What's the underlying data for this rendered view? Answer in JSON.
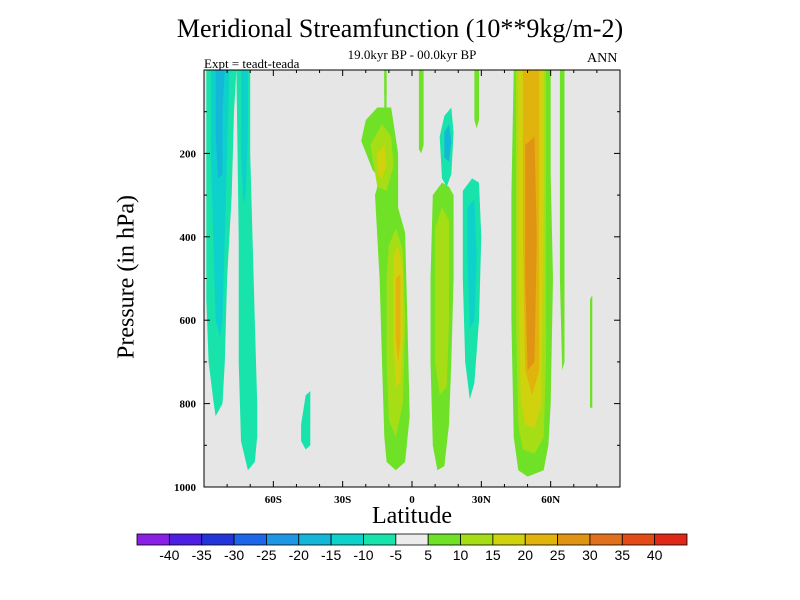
{
  "chart_data": {
    "type": "heatmap",
    "title": "Meridional Streamfunction (10**9kg/m-2)",
    "subtitle": "19.0kyr BP - 00.0kyr BP",
    "experiment": "Expt = teadt-teada",
    "season": "ANN",
    "xlabel": "Latitude",
    "ylabel": "Pressure (in hPa)",
    "xlim": [
      -90,
      90
    ],
    "ylim": [
      1000,
      0
    ],
    "x_ticks": [
      {
        "value": -60,
        "label": "60S"
      },
      {
        "value": -30,
        "label": "30S"
      },
      {
        "value": 0,
        "label": "0"
      },
      {
        "value": 30,
        "label": "30N"
      },
      {
        "value": 60,
        "label": "60N"
      }
    ],
    "y_ticks": [
      {
        "value": 200,
        "label": "200"
      },
      {
        "value": 400,
        "label": "400"
      },
      {
        "value": 600,
        "label": "600"
      },
      {
        "value": 800,
        "label": "800"
      },
      {
        "value": 1000,
        "label": "1000"
      }
    ],
    "colorbar": {
      "levels": [
        "-40",
        "-35",
        "-30",
        "-25",
        "-20",
        "-15",
        "-10",
        "-5",
        "5",
        "10",
        "15",
        "20",
        "25",
        "30",
        "35",
        "40"
      ],
      "colors": [
        "#8a1fe6",
        "#4e1ee2",
        "#2334d8",
        "#1e66e8",
        "#1e96e6",
        "#14b7d8",
        "#0dd2cc",
        "#18e3aa",
        "#ececec",
        "#6fe227",
        "#a6de16",
        "#d0d20e",
        "#e0b40c",
        "#e09414",
        "#e0701c",
        "#e34a18",
        "#e02818"
      ]
    },
    "background_color": "#e6e6e6",
    "contours": [
      {
        "name": "sh-polar-negative-cell-outer",
        "level": "-10 to -5",
        "color": "#18e3aa",
        "points": [
          [
            -89,
            0
          ],
          [
            -76,
            0
          ],
          [
            -77,
            100
          ],
          [
            -78,
            300
          ],
          [
            -80,
            500
          ],
          [
            -81,
            700
          ],
          [
            -82,
            800
          ],
          [
            -85,
            830
          ],
          [
            -86,
            790
          ],
          [
            -88,
            700
          ],
          [
            -89,
            550
          ]
        ]
      },
      {
        "name": "sh-polar-negative-cell-inner",
        "level": "-15 to -10",
        "color": "#0dd2cc",
        "points": [
          [
            -87,
            0
          ],
          [
            -79,
            0
          ],
          [
            -80,
            200
          ],
          [
            -81,
            400
          ],
          [
            -82,
            600
          ],
          [
            -83,
            640
          ],
          [
            -85,
            600
          ],
          [
            -86,
            400
          ],
          [
            -87,
            200
          ]
        ]
      },
      {
        "name": "sh-polar-negative-cell-core",
        "level": "-15 to -10",
        "color": "#14b7d8",
        "points": [
          [
            -85,
            0
          ],
          [
            -81,
            0
          ],
          [
            -82,
            100
          ],
          [
            -82,
            250
          ],
          [
            -84,
            260
          ],
          [
            -85,
            150
          ]
        ]
      },
      {
        "name": "sh-midlat-negative-cell",
        "level": "-10 to -5",
        "color": "#18e3aa",
        "points": [
          [
            -76,
            0
          ],
          [
            -70,
            0
          ],
          [
            -70,
            200
          ],
          [
            -69,
            400
          ],
          [
            -68,
            600
          ],
          [
            -67,
            800
          ],
          [
            -67,
            880
          ],
          [
            -68,
            940
          ],
          [
            -71,
            960
          ],
          [
            -74,
            890
          ],
          [
            -75,
            700
          ],
          [
            -75,
            400
          ]
        ]
      },
      {
        "name": "sh-midlat-negative-cell-core",
        "level": "-15 to -10",
        "color": "#0dd2cc",
        "points": [
          [
            -74,
            0
          ],
          [
            -71,
            0
          ],
          [
            -71,
            150
          ],
          [
            -72,
            300
          ],
          [
            -73,
            320
          ],
          [
            -74,
            200
          ]
        ]
      },
      {
        "name": "sh-small-negative-blob",
        "level": "-10 to -5",
        "color": "#18e3aa",
        "points": [
          [
            -48,
            850
          ],
          [
            -46,
            780
          ],
          [
            -44,
            770
          ],
          [
            -44,
            900
          ],
          [
            -46,
            910
          ],
          [
            -48,
            890
          ]
        ]
      },
      {
        "name": "eq-south-positive-upper",
        "level": "5 to 10",
        "color": "#6fe227",
        "points": [
          [
            -12,
            0
          ],
          [
            -11,
            0
          ],
          [
            -11,
            140
          ],
          [
            -10,
            170
          ],
          [
            -10,
            270
          ],
          [
            -11,
            280
          ],
          [
            -12,
            170
          ]
        ]
      },
      {
        "name": "eq-south-positive-cell",
        "level": "5 to 10",
        "color": "#6fe227",
        "points": [
          [
            -22,
            170
          ],
          [
            -20,
            120
          ],
          [
            -15,
            90
          ],
          [
            -9,
            90
          ],
          [
            -6,
            200
          ],
          [
            -6,
            330
          ],
          [
            -3,
            390
          ],
          [
            -2,
            600
          ],
          [
            -1,
            830
          ],
          [
            -3,
            940
          ],
          [
            -7,
            960
          ],
          [
            -11,
            940
          ],
          [
            -12,
            880
          ],
          [
            -13,
            700
          ],
          [
            -14,
            500
          ],
          [
            -16,
            300
          ],
          [
            -14,
            260
          ],
          [
            -17,
            240
          ]
        ]
      },
      {
        "name": "eq-south-positive-15",
        "level": "10 to 15",
        "color": "#a6de16",
        "points": [
          [
            -18,
            180
          ],
          [
            -13,
            130
          ],
          [
            -9,
            160
          ],
          [
            -8,
            230
          ],
          [
            -11,
            290
          ],
          [
            -15,
            280
          ]
        ]
      },
      {
        "name": "eq-south-positive-20",
        "level": "15 to 20",
        "color": "#d0d20e",
        "points": [
          [
            -15,
            200
          ],
          [
            -12,
            180
          ],
          [
            -11,
            230
          ],
          [
            -13,
            260
          ],
          [
            -15,
            250
          ]
        ]
      },
      {
        "name": "eq-south-positive-mid",
        "level": "10 to 15",
        "color": "#a6de16",
        "points": [
          [
            -10,
            420
          ],
          [
            -7,
            380
          ],
          [
            -4,
            430
          ],
          [
            -3,
            600
          ],
          [
            -4,
            800
          ],
          [
            -7,
            880
          ],
          [
            -10,
            840
          ],
          [
            -11,
            700
          ],
          [
            -11,
            500
          ]
        ]
      },
      {
        "name": "eq-south-positive-mid-20",
        "level": "15 to 20",
        "color": "#d0d20e",
        "points": [
          [
            -8,
            450
          ],
          [
            -6,
            420
          ],
          [
            -4,
            480
          ],
          [
            -4,
            650
          ],
          [
            -5,
            750
          ],
          [
            -7,
            760
          ],
          [
            -8,
            650
          ]
        ]
      },
      {
        "name": "eq-south-positive-mid-25",
        "level": "20 to 25",
        "color": "#e0b40c",
        "points": [
          [
            -7,
            500
          ],
          [
            -5,
            490
          ],
          [
            -5,
            650
          ],
          [
            -6,
            700
          ],
          [
            -7,
            640
          ]
        ]
      },
      {
        "name": "eq-north-upper-positive",
        "level": "5 to 10",
        "color": "#6fe227",
        "points": [
          [
            -12,
            0
          ],
          [
            -11,
            0
          ],
          [
            -11,
            60
          ],
          [
            -12,
            60
          ]
        ]
      },
      {
        "name": "eq-positive-top-strip",
        "level": "5 to 10",
        "color": "#6fe227",
        "points": [
          [
            3,
            0
          ],
          [
            5,
            0
          ],
          [
            5,
            180
          ],
          [
            4,
            200
          ],
          [
            3,
            190
          ]
        ]
      },
      {
        "name": "nh-tropical-positive-cell",
        "level": "5 to 10",
        "color": "#6fe227",
        "points": [
          [
            9,
            300
          ],
          [
            13,
            270
          ],
          [
            16,
            280
          ],
          [
            18,
            300
          ],
          [
            18,
            500
          ],
          [
            17,
            700
          ],
          [
            16,
            850
          ],
          [
            14,
            950
          ],
          [
            11,
            960
          ],
          [
            9,
            900
          ],
          [
            8,
            700
          ],
          [
            8,
            500
          ]
        ]
      },
      {
        "name": "nh-tropical-positive-core",
        "level": "10 to 15",
        "color": "#a6de16",
        "points": [
          [
            10,
            380
          ],
          [
            13,
            330
          ],
          [
            16,
            360
          ],
          [
            16,
            600
          ],
          [
            15,
            760
          ],
          [
            12,
            780
          ],
          [
            10,
            700
          ]
        ]
      },
      {
        "name": "nh-tropical-positive-top",
        "level": "5 to 10",
        "color": "#6fe227",
        "points": [
          [
            27,
            0
          ],
          [
            29,
            0
          ],
          [
            29,
            120
          ],
          [
            28,
            140
          ],
          [
            27,
            120
          ]
        ]
      },
      {
        "name": "equatorial-negative-upper",
        "level": "-10 to -5",
        "color": "#18e3aa",
        "points": [
          [
            12,
            160
          ],
          [
            14,
            110
          ],
          [
            17,
            90
          ],
          [
            18,
            150
          ],
          [
            17,
            250
          ],
          [
            15,
            280
          ],
          [
            13,
            260
          ]
        ]
      },
      {
        "name": "equatorial-negative-upper-core",
        "level": "-15 to -10",
        "color": "#14b7d8",
        "points": [
          [
            14,
            150
          ],
          [
            16,
            130
          ],
          [
            17,
            170
          ],
          [
            16,
            220
          ],
          [
            14,
            210
          ]
        ]
      },
      {
        "name": "nh-subtropic-negative",
        "level": "-10 to -5",
        "color": "#18e3aa",
        "points": [
          [
            22,
            290
          ],
          [
            26,
            260
          ],
          [
            29,
            270
          ],
          [
            30,
            400
          ],
          [
            29,
            600
          ],
          [
            27,
            750
          ],
          [
            25,
            790
          ],
          [
            23,
            700
          ],
          [
            22,
            500
          ]
        ]
      },
      {
        "name": "nh-subtropic-negative-core",
        "level": "-15 to -10",
        "color": "#0dd2cc",
        "points": [
          [
            24,
            330
          ],
          [
            27,
            310
          ],
          [
            28,
            450
          ],
          [
            27,
            600
          ],
          [
            25,
            620
          ],
          [
            24,
            450
          ]
        ]
      },
      {
        "name": "nh-ferrel-positive-outer",
        "level": "5 to 10",
        "color": "#6fe227",
        "points": [
          [
            44,
            0
          ],
          [
            60,
            0
          ],
          [
            60,
            250
          ],
          [
            61,
            500
          ],
          [
            60,
            800
          ],
          [
            59,
            900
          ],
          [
            57,
            960
          ],
          [
            50,
            975
          ],
          [
            46,
            960
          ],
          [
            44,
            880
          ],
          [
            43,
            600
          ],
          [
            43,
            300
          ]
        ]
      },
      {
        "name": "nh-ferrel-positive-15",
        "level": "10 to 15",
        "color": "#a6de16",
        "points": [
          [
            45,
            0
          ],
          [
            58,
            0
          ],
          [
            58,
            300
          ],
          [
            58,
            700
          ],
          [
            57,
            880
          ],
          [
            53,
            920
          ],
          [
            48,
            910
          ],
          [
            46,
            850
          ],
          [
            45,
            600
          ]
        ]
      },
      {
        "name": "nh-ferrel-positive-20",
        "level": "15 to 20",
        "color": "#d0d20e",
        "points": [
          [
            46,
            0
          ],
          [
            57,
            0
          ],
          [
            57,
            400
          ],
          [
            56,
            800
          ],
          [
            53,
            860
          ],
          [
            49,
            850
          ],
          [
            47,
            780
          ],
          [
            46,
            500
          ]
        ]
      },
      {
        "name": "nh-ferrel-positive-25",
        "level": "20 to 25",
        "color": "#e0b40c",
        "points": [
          [
            48,
            0
          ],
          [
            55,
            0
          ],
          [
            55,
            300
          ],
          [
            55,
            720
          ],
          [
            52,
            780
          ],
          [
            49,
            720
          ],
          [
            48,
            400
          ]
        ]
      },
      {
        "name": "nh-ferrel-positive-30",
        "level": "25 to 30",
        "color": "#e09414",
        "points": [
          [
            49,
            180
          ],
          [
            53,
            160
          ],
          [
            54,
            400
          ],
          [
            53,
            700
          ],
          [
            50,
            720
          ],
          [
            49,
            500
          ]
        ]
      },
      {
        "name": "nh-polar-positive-strip",
        "level": "5 to 10",
        "color": "#6fe227",
        "points": [
          [
            64,
            0
          ],
          [
            66,
            0
          ],
          [
            66,
            300
          ],
          [
            66,
            700
          ],
          [
            65,
            720
          ],
          [
            64,
            500
          ]
        ]
      },
      {
        "name": "nh-high-positive-strip",
        "level": "5 to 10",
        "color": "#6fe227",
        "points": [
          [
            77,
            550
          ],
          [
            78,
            540
          ],
          [
            78,
            810
          ],
          [
            77,
            810
          ]
        ]
      }
    ]
  }
}
